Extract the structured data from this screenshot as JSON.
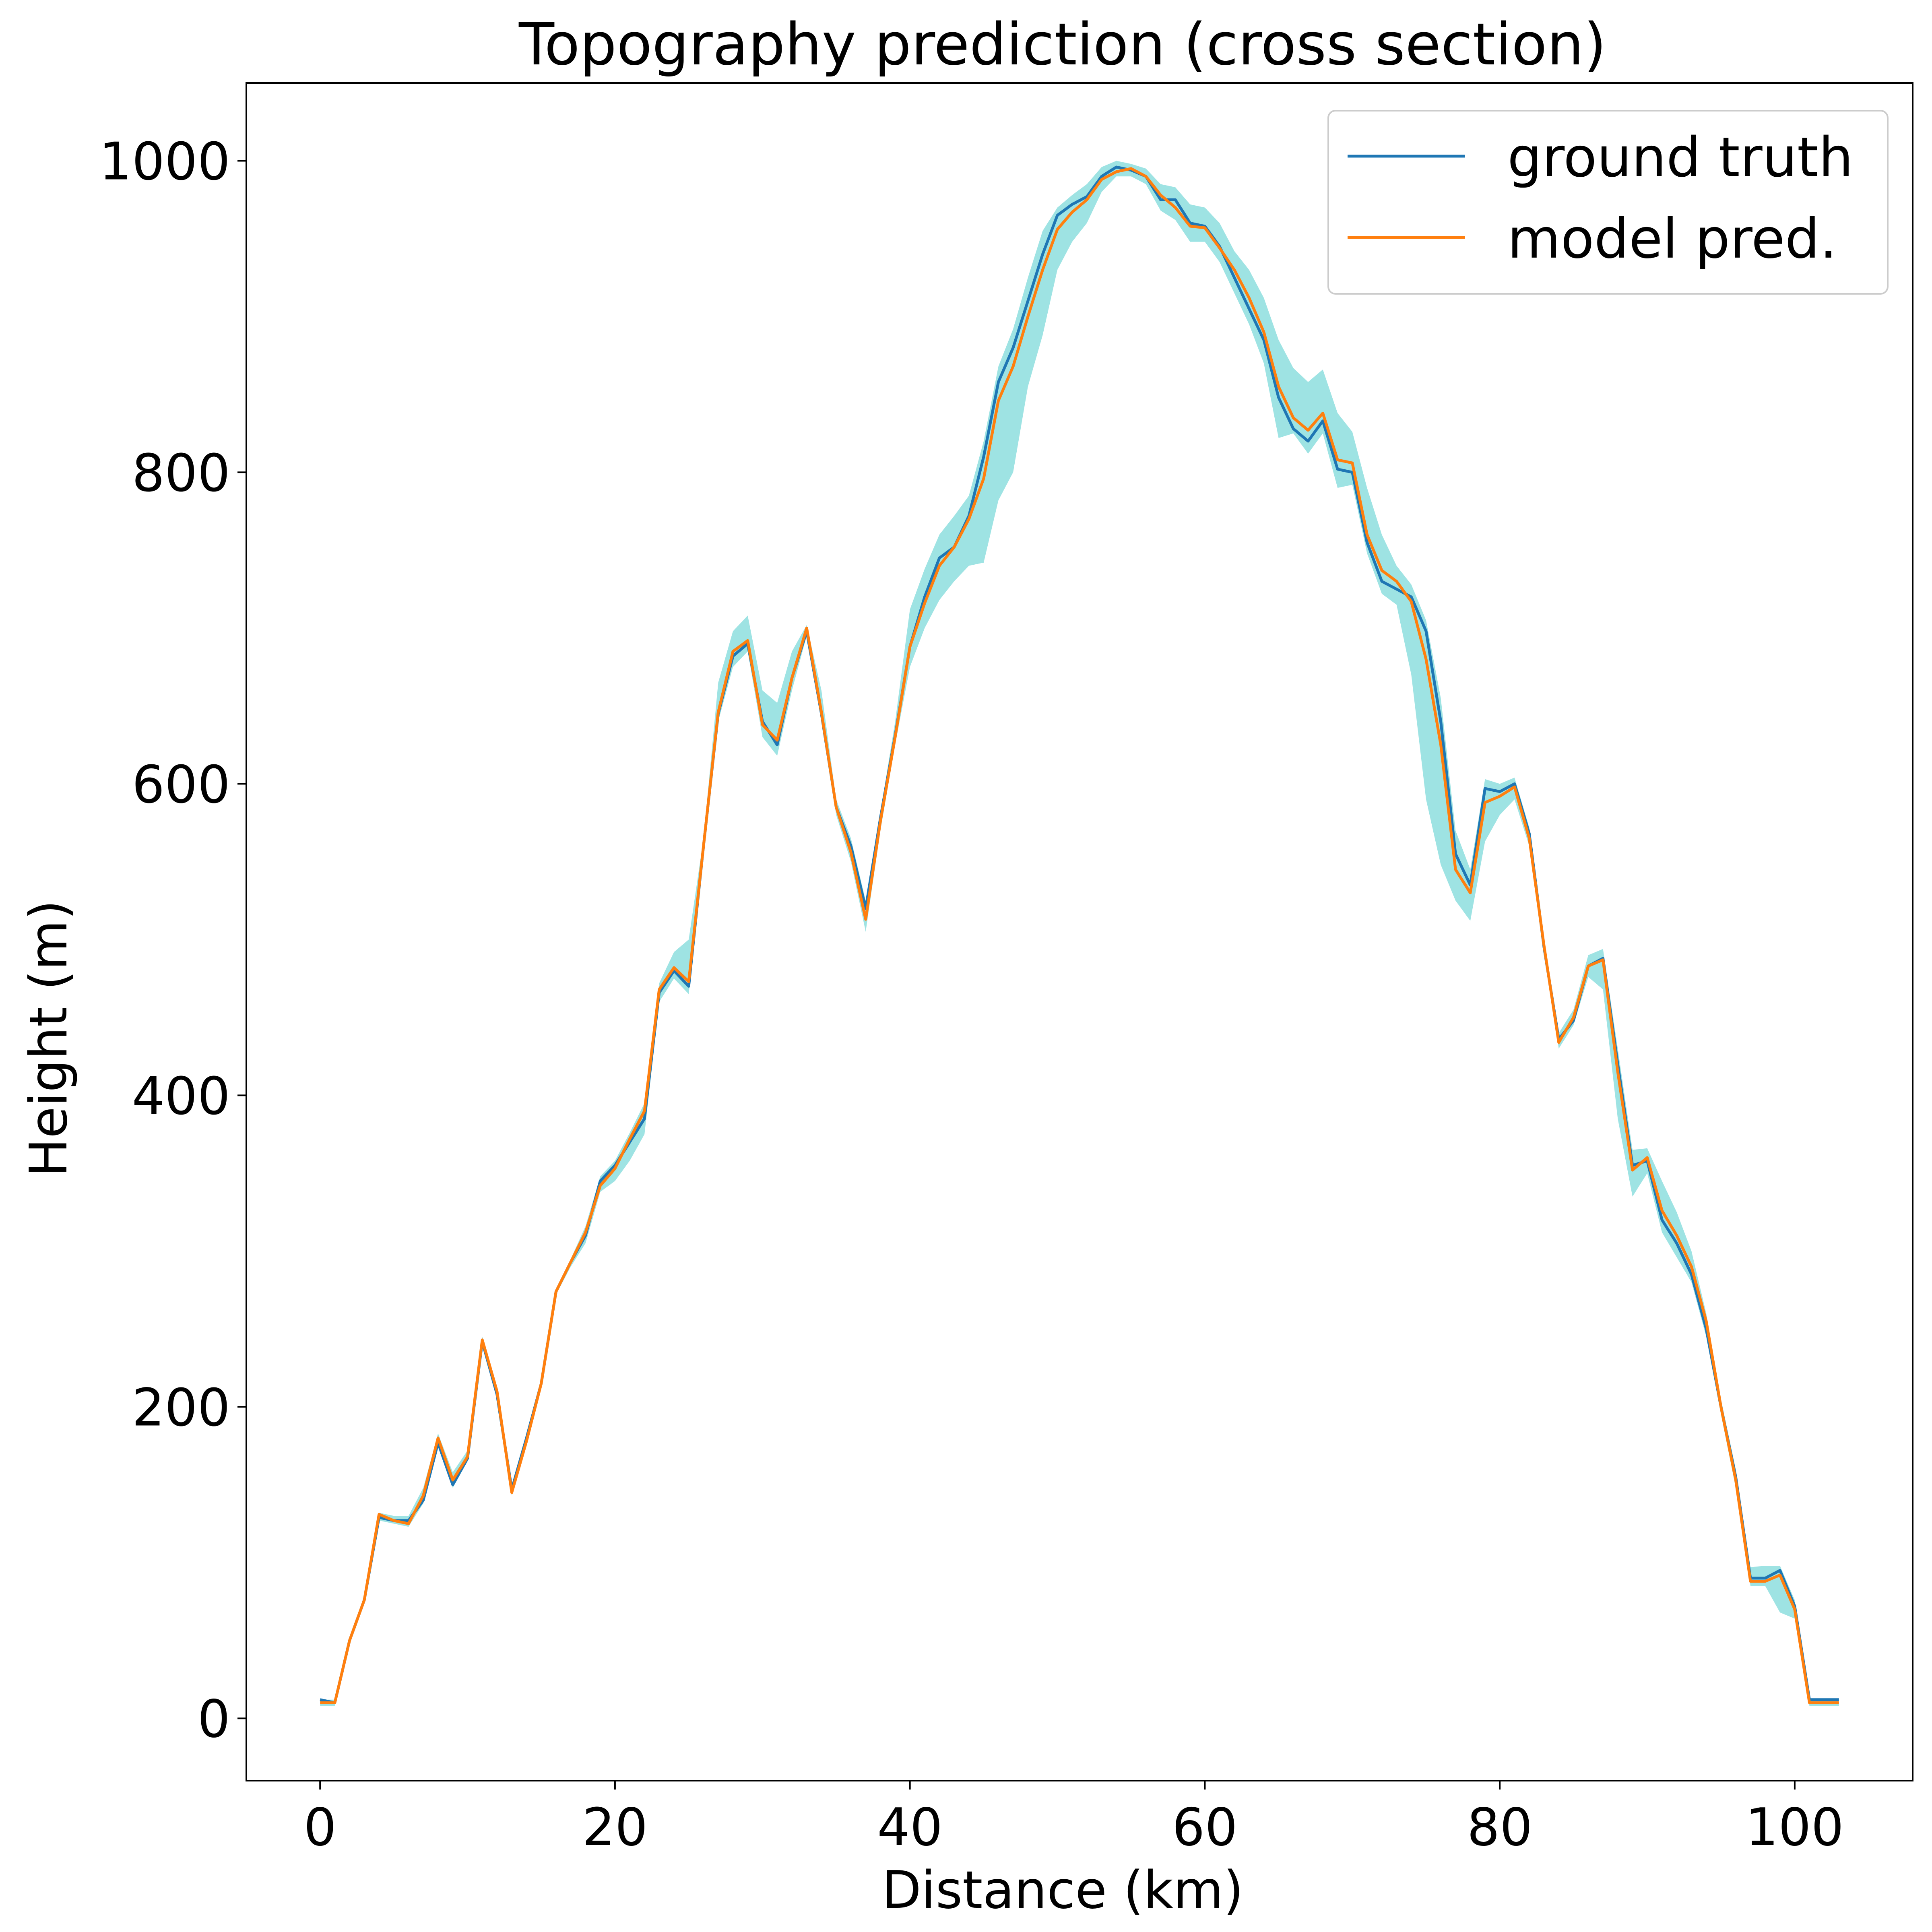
{
  "colors": {
    "ground_truth": "#1f77b4",
    "model_pred": "#ff7f0e",
    "band": "#9ee3e3",
    "axes": "#000000",
    "background": "#ffffff"
  },
  "chart_data": {
    "type": "line",
    "title": "Topography prediction  (cross section)",
    "xlabel": "Distance (km)",
    "ylabel": "Height (m)",
    "xlim": [
      -5,
      108
    ],
    "ylim": [
      -40,
      1050
    ],
    "xticks": [
      0,
      20,
      40,
      60,
      80,
      100
    ],
    "yticks": [
      0,
      200,
      400,
      600,
      800,
      1000
    ],
    "grid": false,
    "legend_position": "top-right",
    "x": [
      0,
      1,
      2,
      3,
      4,
      5,
      6,
      7,
      8,
      9,
      10,
      11,
      12,
      13,
      14,
      15,
      16,
      17,
      18,
      19,
      20,
      21,
      22,
      23,
      24,
      25,
      26,
      27,
      28,
      29,
      30,
      31,
      32,
      33,
      34,
      35,
      36,
      37,
      38,
      39,
      40,
      41,
      42,
      43,
      44,
      45,
      46,
      47,
      48,
      49,
      50,
      51,
      52,
      53,
      54,
      55,
      56,
      57,
      58,
      59,
      60,
      61,
      62,
      63,
      64,
      65,
      66,
      67,
      68,
      69,
      70,
      71,
      72,
      73,
      74,
      75,
      76,
      77,
      78,
      79,
      80,
      81,
      82,
      83,
      84,
      85,
      86,
      87,
      88,
      89,
      90,
      91,
      92,
      93,
      94,
      95,
      96,
      97,
      98,
      99,
      100,
      101,
      102,
      103
    ],
    "series": [
      {
        "name": "ground truth",
        "values": [
          12,
          10,
          50,
          76,
          129,
          127,
          127,
          140,
          177,
          150,
          167,
          242,
          208,
          147,
          180,
          215,
          274,
          293,
          310,
          345,
          355,
          370,
          385,
          466,
          480,
          470,
          560,
          645,
          682,
          690,
          640,
          625,
          668,
          698,
          645,
          585,
          560,
          520,
          578,
          631,
          688,
          720,
          745,
          752,
          772,
          810,
          858,
          880,
          910,
          940,
          965,
          972,
          977,
          990,
          996,
          994,
          990,
          975,
          975,
          960,
          958,
          945,
          925,
          905,
          885,
          848,
          828,
          820,
          833,
          802,
          800,
          755,
          730,
          725,
          720,
          698,
          640,
          555,
          535,
          597,
          595,
          600,
          568,
          495,
          436,
          448,
          483,
          488,
          420,
          355,
          358,
          320,
          305,
          285,
          250,
          200,
          155,
          90,
          90,
          95,
          72,
          12,
          12,
          12
        ]
      },
      {
        "name": "model pred.",
        "values": [
          10,
          10,
          50,
          76,
          131,
          127,
          125,
          143,
          180,
          153,
          168,
          243,
          210,
          145,
          178,
          215,
          274,
          293,
          312,
          342,
          353,
          372,
          390,
          468,
          482,
          473,
          560,
          646,
          685,
          692,
          638,
          628,
          668,
          700,
          646,
          585,
          556,
          513,
          576,
          630,
          688,
          716,
          740,
          752,
          770,
          796,
          846,
          868,
          900,
          930,
          956,
          967,
          975,
          988,
          993,
          995,
          990,
          978,
          970,
          958,
          957,
          944,
          930,
          912,
          890,
          855,
          835,
          827,
          838,
          808,
          806,
          760,
          737,
          730,
          717,
          680,
          625,
          545,
          530,
          588,
          592,
          598,
          565,
          496,
          434,
          450,
          483,
          487,
          415,
          352,
          360,
          326,
          310,
          290,
          255,
          200,
          153,
          88,
          88,
          92,
          70,
          10,
          10,
          10
        ]
      }
    ],
    "band": {
      "upper": [
        12,
        12,
        52,
        78,
        132,
        130,
        130,
        148,
        183,
        158,
        172,
        245,
        212,
        150,
        182,
        218,
        276,
        295,
        316,
        348,
        358,
        376,
        395,
        472,
        492,
        500,
        565,
        665,
        698,
        708,
        660,
        652,
        685,
        702,
        660,
        590,
        565,
        525,
        582,
        640,
        712,
        738,
        760,
        772,
        785,
        820,
        868,
        892,
        925,
        955,
        970,
        978,
        985,
        996,
        1000,
        998,
        995,
        985,
        983,
        972,
        970,
        960,
        942,
        930,
        912,
        885,
        867,
        858,
        866,
        838,
        826,
        790,
        760,
        740,
        728,
        705,
        655,
        570,
        545,
        603,
        600,
        604,
        572,
        500,
        440,
        455,
        490,
        494,
        430,
        365,
        366,
        345,
        325,
        300,
        260,
        205,
        160,
        97,
        98,
        98,
        76,
        12,
        12,
        12
      ],
      "lower": [
        8,
        8,
        48,
        74,
        127,
        125,
        123,
        138,
        176,
        148,
        165,
        240,
        206,
        143,
        176,
        212,
        272,
        290,
        305,
        338,
        345,
        358,
        375,
        460,
        475,
        465,
        555,
        640,
        675,
        685,
        630,
        618,
        660,
        695,
        640,
        580,
        550,
        505,
        570,
        625,
        675,
        700,
        718,
        730,
        740,
        742,
        782,
        800,
        855,
        888,
        930,
        948,
        960,
        980,
        990,
        990,
        985,
        968,
        962,
        948,
        948,
        935,
        915,
        895,
        870,
        822,
        825,
        812,
        825,
        790,
        792,
        748,
        722,
        715,
        670,
        590,
        548,
        525,
        512,
        563,
        580,
        590,
        560,
        490,
        430,
        445,
        476,
        468,
        385,
        335,
        350,
        312,
        296,
        280,
        245,
        195,
        148,
        85,
        85,
        68,
        64,
        8,
        8,
        8
      ]
    }
  }
}
